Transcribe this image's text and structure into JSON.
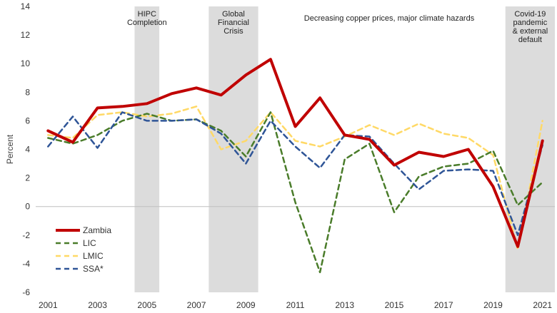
{
  "chart_data": {
    "type": "line",
    "title": "",
    "xlabel": "",
    "ylabel": "Percent",
    "ylim": [
      -6,
      14
    ],
    "yticks": [
      -6,
      -4,
      -2,
      0,
      2,
      4,
      6,
      8,
      10,
      12,
      14
    ],
    "x": [
      2001,
      2002,
      2003,
      2004,
      2005,
      2006,
      2007,
      2008,
      2009,
      2010,
      2011,
      2012,
      2013,
      2014,
      2015,
      2016,
      2017,
      2018,
      2019,
      2020,
      2021
    ],
    "xtick_labels": [
      "2001",
      "2003",
      "2005",
      "2007",
      "2009",
      "2011",
      "2013",
      "2015",
      "2017",
      "2019",
      "2021"
    ],
    "series": [
      {
        "name": "Zambia",
        "color": "#c00000",
        "style": "solid",
        "values": [
          5.3,
          4.5,
          6.9,
          7.0,
          7.2,
          7.9,
          8.3,
          7.8,
          9.2,
          10.3,
          5.6,
          7.6,
          5.0,
          4.7,
          2.9,
          3.8,
          3.5,
          4.0,
          1.4,
          -2.8,
          4.6
        ]
      },
      {
        "name": "LIC",
        "color": "#4a7c2a",
        "style": "dashed",
        "values": [
          4.8,
          4.4,
          5.0,
          6.0,
          6.5,
          6.0,
          6.1,
          5.3,
          3.5,
          6.6,
          0.3,
          -4.6,
          3.3,
          4.4,
          -0.4,
          2.1,
          2.8,
          3.0,
          3.9,
          0.1,
          1.7
        ]
      },
      {
        "name": "LMIC",
        "color": "#ffd966",
        "style": "dashed",
        "values": [
          5.0,
          4.8,
          6.4,
          6.6,
          6.3,
          6.5,
          7.0,
          4.0,
          4.6,
          6.6,
          4.6,
          4.2,
          4.9,
          5.7,
          5.0,
          5.8,
          5.1,
          4.8,
          3.6,
          -3.0,
          6.0
        ]
      },
      {
        "name": "SSA*",
        "color": "#2f5597",
        "style": "dashed",
        "values": [
          4.2,
          6.3,
          4.1,
          6.6,
          6.0,
          6.0,
          6.1,
          5.1,
          3.0,
          6.0,
          4.2,
          2.7,
          5.0,
          4.9,
          3.0,
          1.2,
          2.5,
          2.6,
          2.5,
          -2.0,
          4.3
        ]
      }
    ],
    "shaded_periods": [
      {
        "label": "HIPC Completion",
        "start": 2004.5,
        "end": 2005.5
      },
      {
        "label": "Global Financial Crisis",
        "start": 2007.5,
        "end": 2009.5
      },
      {
        "label": "Covid-19 pandemic & external default",
        "start": 2019.5,
        "end": 2021.5
      }
    ],
    "annotations": [
      {
        "text": "Decreasing copper prices, major climate hazards"
      }
    ],
    "legend_position": "lower-left"
  }
}
